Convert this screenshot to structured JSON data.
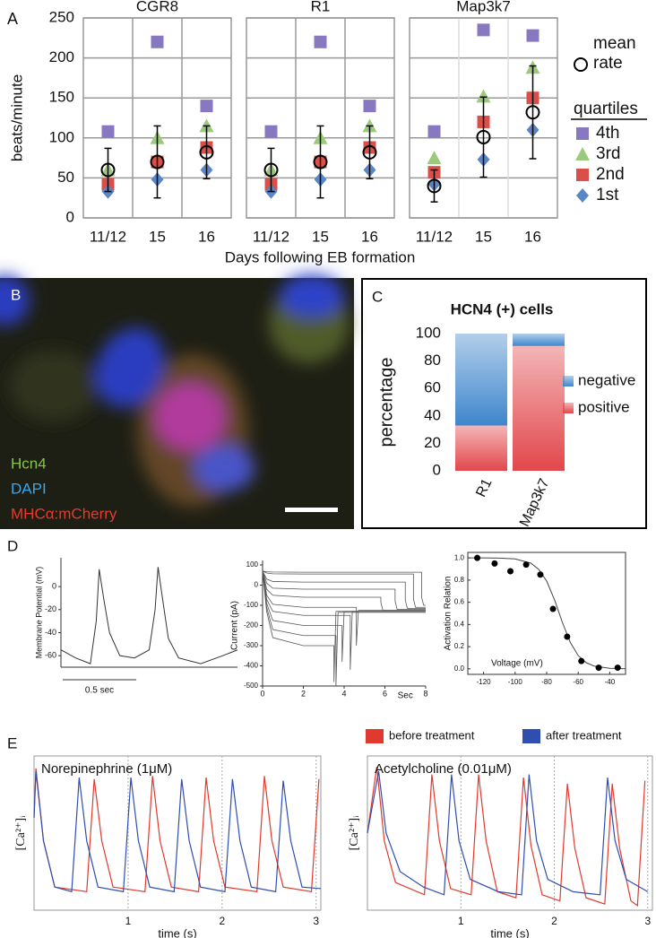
{
  "chart_data": [
    {
      "type": "dotplot",
      "panel": "A",
      "ylabel": "beats/minute",
      "xlabel": "Days following EB formation",
      "categories": [
        "11/12",
        "15",
        "16"
      ],
      "ylim": [
        0,
        250
      ],
      "yticks": [
        0,
        50,
        100,
        150,
        200,
        250
      ],
      "grid": true,
      "legend_title": "quartiles",
      "series": [
        {
          "name": "4th",
          "color": "#8878c0",
          "marker": "square"
        },
        {
          "name": "3rd",
          "color": "#9cc97c",
          "marker": "triangle"
        },
        {
          "name": "2nd",
          "color": "#d9504a",
          "marker": "square"
        },
        {
          "name": "1st",
          "color": "#5a86c6",
          "marker": "diamond"
        },
        {
          "name": "mean rate",
          "color": "#000000",
          "marker": "circle"
        }
      ],
      "subplots": [
        {
          "title": "CGR8",
          "series": [
            {
              "values": [
                108,
                220,
                140
              ]
            },
            {
              "values": [
                60,
                100,
                115
              ]
            },
            {
              "values": [
                42,
                70,
                88
              ]
            },
            {
              "values": [
                33,
                48,
                60
              ]
            },
            {
              "values": [
                60,
                70,
                82
              ],
              "errors": [
                27,
                45,
                33
              ]
            }
          ]
        },
        {
          "title": "R1",
          "series": [
            {
              "values": [
                108,
                220,
                140
              ]
            },
            {
              "values": [
                60,
                100,
                115
              ]
            },
            {
              "values": [
                42,
                70,
                88
              ]
            },
            {
              "values": [
                33,
                48,
                60
              ]
            },
            {
              "values": [
                60,
                70,
                82
              ],
              "errors": [
                27,
                45,
                33
              ]
            }
          ]
        },
        {
          "title": "Map3k7",
          "series": [
            {
              "values": [
                108,
                235,
                228
              ]
            },
            {
              "values": [
                75,
                152,
                188
              ]
            },
            {
              "values": [
                57,
                120,
                150
              ]
            },
            {
              "values": [
                42,
                73,
                110
              ]
            },
            {
              "values": [
                40,
                101,
                132
              ],
              "errors": [
                20,
                50,
                58
              ]
            }
          ]
        }
      ]
    },
    {
      "type": "stacked_bar",
      "panel": "C",
      "title": "HCN4 (+) cells",
      "ylabel": "percentage",
      "categories": [
        "R1",
        "Map3k7"
      ],
      "ylim": [
        0,
        100
      ],
      "yticks": [
        0,
        20,
        40,
        60,
        80,
        100
      ],
      "series": [
        {
          "name": "positive",
          "color": "#e2474b",
          "values": [
            33,
            91
          ]
        },
        {
          "name": "negative",
          "color": "#3f86cc",
          "values": [
            67,
            9
          ]
        }
      ]
    },
    {
      "type": "trace",
      "panel": "D",
      "ylabel": "Membrane Potential (mV)",
      "color": "#333333",
      "x": [
        0,
        0.1,
        0.2,
        0.24,
        0.26,
        0.29,
        0.33,
        0.4,
        0.5,
        0.6,
        0.64,
        0.66,
        0.69,
        0.73,
        0.8,
        0.95,
        1.1,
        1.2
      ],
      "values": [
        -55,
        -62,
        -67,
        -30,
        15,
        -10,
        -40,
        -60,
        -62,
        -55,
        -20,
        17,
        -10,
        -45,
        -62,
        -67,
        -60,
        -55
      ],
      "xlim": [
        0,
        1.2
      ],
      "ylim": [
        -70,
        25
      ],
      "yticks": [
        0,
        -20,
        -40,
        -60
      ],
      "scale_bar": {
        "value": 0.5,
        "label": "0.5 sec"
      }
    },
    {
      "type": "traces",
      "ylabel": "Current (pA)",
      "xlabel": "Sec",
      "color": "#555555",
      "xlim": [
        0,
        8
      ],
      "ylim": [
        -500,
        100
      ],
      "xticks": [
        0,
        2,
        4,
        6,
        8
      ],
      "yticks": [
        100,
        0,
        -100,
        -200,
        -300,
        -400,
        -500
      ],
      "traces": [
        {
          "x": [
            0,
            0.2,
            0.5,
            2,
            7.8,
            7.8,
            7.9,
            8
          ],
          "values": [
            70,
            66,
            65,
            64,
            64,
            -60,
            -100,
            -100
          ]
        },
        {
          "x": [
            0,
            0.2,
            0.5,
            2,
            7.4,
            7.4,
            7.5,
            8
          ],
          "values": [
            70,
            60,
            56,
            55,
            55,
            -70,
            -110,
            -110
          ]
        },
        {
          "x": [
            0,
            0.2,
            0.5,
            2,
            7.0,
            7.0,
            7.1,
            8
          ],
          "values": [
            70,
            30,
            18,
            15,
            15,
            -75,
            -115,
            -115
          ]
        },
        {
          "x": [
            0,
            0.2,
            0.5,
            2,
            6.5,
            6.5,
            6.6,
            8
          ],
          "values": [
            70,
            10,
            -15,
            -20,
            -20,
            -80,
            -120,
            -120
          ]
        },
        {
          "x": [
            0,
            0.2,
            0.5,
            2,
            5.8,
            5.8,
            5.9,
            8
          ],
          "values": [
            70,
            -20,
            -50,
            -60,
            -60,
            -85,
            -125,
            -125
          ]
        },
        {
          "x": [
            0,
            0.2,
            0.5,
            2,
            4.6,
            4.6,
            4.7,
            8
          ],
          "values": [
            70,
            -50,
            -95,
            -110,
            -110,
            -300,
            -125,
            -125
          ]
        },
        {
          "x": [
            0,
            0.2,
            0.5,
            2,
            4.3,
            4.3,
            4.4,
            8
          ],
          "values": [
            70,
            -70,
            -130,
            -150,
            -150,
            -420,
            -130,
            -130
          ]
        },
        {
          "x": [
            0,
            0.2,
            0.5,
            2,
            3.9,
            3.9,
            4.0,
            8
          ],
          "values": [
            70,
            -90,
            -175,
            -200,
            -200,
            -380,
            -130,
            -130
          ]
        },
        {
          "x": [
            0,
            0.2,
            0.5,
            2,
            3.6,
            3.6,
            3.7,
            8
          ],
          "values": [
            70,
            -110,
            -220,
            -250,
            -250,
            -500,
            -135,
            -135
          ]
        },
        {
          "x": [
            0,
            0.2,
            0.5,
            2,
            3.5,
            3.5,
            3.6,
            8
          ],
          "values": [
            70,
            -130,
            -260,
            -300,
            -300,
            -480,
            -130,
            -130
          ]
        }
      ]
    },
    {
      "type": "scatter",
      "ylabel": "Activation Relation",
      "xlabel": "Voltage (mV)",
      "color": "#000000",
      "x": [
        -124,
        -113,
        -103,
        -93,
        -84,
        -76,
        -67,
        -58,
        -47,
        -35
      ],
      "values": [
        1.0,
        0.95,
        0.88,
        0.94,
        0.85,
        0.54,
        0.29,
        0.07,
        0.01,
        0.01
      ],
      "fit": {
        "x": [
          -130,
          -120,
          -110,
          -100,
          -90,
          -85,
          -80,
          -75,
          -70,
          -65,
          -60,
          -55,
          -50,
          -40,
          -30
        ],
        "values": [
          1.0,
          1.0,
          0.998,
          0.991,
          0.953,
          0.897,
          0.791,
          0.622,
          0.417,
          0.238,
          0.119,
          0.056,
          0.025,
          0.005,
          0.001
        ]
      },
      "xlim": [
        -130,
        -30
      ],
      "ylim": [
        -0.05,
        1.05
      ],
      "xticks": [
        -120,
        -100,
        -80,
        -60,
        -40
      ],
      "yticks": [
        {
          "value": 0,
          "label": "0.0"
        },
        0.2,
        0.4,
        0.6,
        0.8,
        {
          "value": 1,
          "label": "1.0"
        }
      ]
    },
    {
      "type": "line",
      "panel": "E",
      "title": "Norepinephrine (1μM)",
      "ylabel": "[Ca²⁺]ᵢ",
      "xlabel": "time (s)",
      "xlim": [
        0,
        3.05
      ],
      "ylim": [
        0,
        1
      ],
      "xticks": [
        1,
        2,
        3
      ],
      "grid": true,
      "series": [
        {
          "name": "before treatment",
          "color": "#e03a2e",
          "x": [
            0,
            0.02,
            0.1,
            0.22,
            0.56,
            0.64,
            0.72,
            0.84,
            1.18,
            1.26,
            1.34,
            1.46,
            1.75,
            1.83,
            1.91,
            2.03,
            2.37,
            2.45,
            2.53,
            2.65,
            2.95,
            3.03
          ],
          "values": [
            0.6,
            0.92,
            0.45,
            0.15,
            0.12,
            0.85,
            0.45,
            0.15,
            0.12,
            0.87,
            0.45,
            0.15,
            0.12,
            0.86,
            0.45,
            0.15,
            0.12,
            0.87,
            0.45,
            0.15,
            0.12,
            0.85
          ]
        },
        {
          "name": "after treatment",
          "color": "#2f4fb0",
          "x": [
            0,
            0.02,
            0.1,
            0.22,
            0.4,
            0.48,
            0.56,
            0.68,
            0.95,
            1.03,
            1.11,
            1.23,
            1.49,
            1.57,
            1.65,
            1.77,
            2.03,
            2.11,
            2.19,
            2.31,
            2.57,
            2.65,
            2.73,
            2.85,
            3.05
          ],
          "values": [
            0.6,
            0.9,
            0.45,
            0.15,
            0.12,
            0.86,
            0.45,
            0.15,
            0.12,
            0.86,
            0.45,
            0.15,
            0.12,
            0.85,
            0.45,
            0.15,
            0.12,
            0.85,
            0.45,
            0.15,
            0.12,
            0.84,
            0.45,
            0.15,
            0.14
          ]
        }
      ]
    },
    {
      "type": "line",
      "title": "Acetylcholine (0.01μM)",
      "ylabel": "[Ca²⁺]ᵢ",
      "xlabel": "time (s)",
      "xlim": [
        0,
        3.05
      ],
      "ylim": [
        0,
        1
      ],
      "xticks": [
        1,
        2,
        3
      ],
      "grid": true,
      "legend": true,
      "series": [
        {
          "name": "before treatment",
          "color": "#e03a2e",
          "x": [
            0,
            0.1,
            0.18,
            0.3,
            0.61,
            0.69,
            0.77,
            0.89,
            1.11,
            1.19,
            1.27,
            1.39,
            1.59,
            1.67,
            1.75,
            1.87,
            2.06,
            2.14,
            2.22,
            2.34,
            2.54,
            2.62,
            2.7,
            2.82,
            2.89,
            2.97
          ],
          "values": [
            0.5,
            0.93,
            0.45,
            0.18,
            0.1,
            0.88,
            0.45,
            0.14,
            0.1,
            0.88,
            0.45,
            0.12,
            0.08,
            0.86,
            0.42,
            0.1,
            0.06,
            0.82,
            0.4,
            0.08,
            0.04,
            0.82,
            0.4,
            0.06,
            0.03,
            0.84
          ]
        },
        {
          "name": "after treatment",
          "color": "#2f4fb0",
          "x": [
            0,
            0.12,
            0.2,
            0.35,
            0.6,
            0.82,
            0.9,
            0.98,
            1.1,
            1.4,
            1.65,
            1.73,
            1.81,
            1.93,
            2.2,
            2.49,
            2.57,
            2.65,
            2.77,
            3.0
          ],
          "values": [
            0.5,
            0.9,
            0.5,
            0.25,
            0.15,
            0.1,
            0.88,
            0.45,
            0.2,
            0.12,
            0.1,
            0.88,
            0.45,
            0.2,
            0.12,
            0.1,
            0.86,
            0.45,
            0.2,
            0.12
          ]
        }
      ]
    }
  ],
  "image_panel": {
    "panel": "B",
    "labels": [
      {
        "text": "Hcn4",
        "color": "#86c24a"
      },
      {
        "text": "DAPI",
        "color": "#3aa6f0"
      },
      {
        "text": "MHCα:mCherry",
        "color": "#e8392f"
      }
    ]
  }
}
